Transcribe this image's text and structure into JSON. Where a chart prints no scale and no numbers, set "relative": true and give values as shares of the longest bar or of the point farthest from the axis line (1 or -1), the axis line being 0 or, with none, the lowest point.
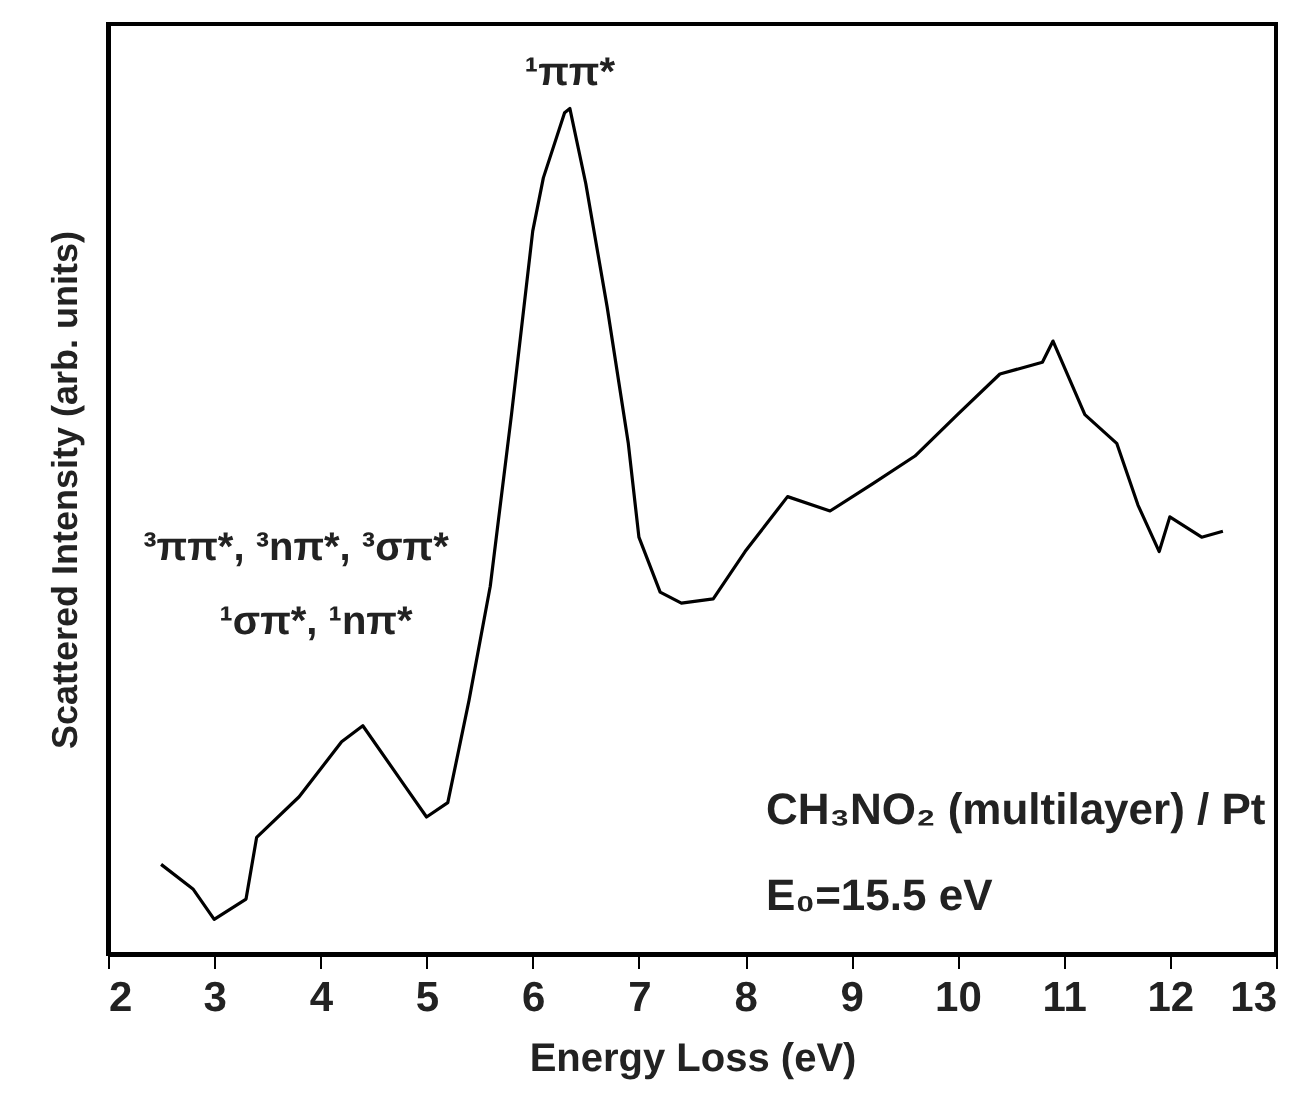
{
  "chart_data": {
    "type": "line",
    "relative": true,
    "xlabel": "Energy Loss (eV)",
    "ylabel": "Scattered Intensity (arb. units)",
    "xlim": [
      2,
      13
    ],
    "xticks": [
      2,
      3,
      4,
      5,
      6,
      7,
      8,
      9,
      10,
      11,
      12,
      13
    ],
    "annotations": [
      {
        "text": "¹ππ*",
        "x": 6.35,
        "y": 1.0
      },
      "³ππ*, ³nπ*, ³σπ*",
      "¹σπ*, ¹nπ*",
      "CH₃NO₂ (multilayer) / Pt",
      "E₀=15.5 eV"
    ],
    "series": [
      {
        "color": "#000000",
        "x": [
          2.5,
          2.8,
          3.0,
          3.3,
          3.4,
          3.8,
          4.2,
          4.4,
          4.8,
          5.0,
          5.2,
          5.4,
          5.6,
          5.8,
          6.0,
          6.1,
          6.3,
          6.35,
          6.5,
          6.7,
          6.9,
          7.0,
          7.2,
          7.4,
          7.7,
          8.0,
          8.4,
          8.8,
          9.2,
          9.6,
          10.0,
          10.4,
          10.8,
          10.9,
          11.2,
          11.5,
          11.7,
          11.9,
          12.0,
          12.3,
          12.5
        ],
        "values": [
          0.106,
          0.077,
          0.041,
          0.065,
          0.138,
          0.186,
          0.251,
          0.27,
          0.198,
          0.162,
          0.179,
          0.3,
          0.435,
          0.638,
          0.855,
          0.918,
          0.995,
          1.0,
          0.911,
          0.766,
          0.604,
          0.493,
          0.428,
          0.415,
          0.42,
          0.476,
          0.541,
          0.524,
          0.556,
          0.589,
          0.638,
          0.686,
          0.7,
          0.725,
          0.638,
          0.604,
          0.531,
          0.476,
          0.517,
          0.493,
          0.5
        ]
      }
    ]
  }
}
